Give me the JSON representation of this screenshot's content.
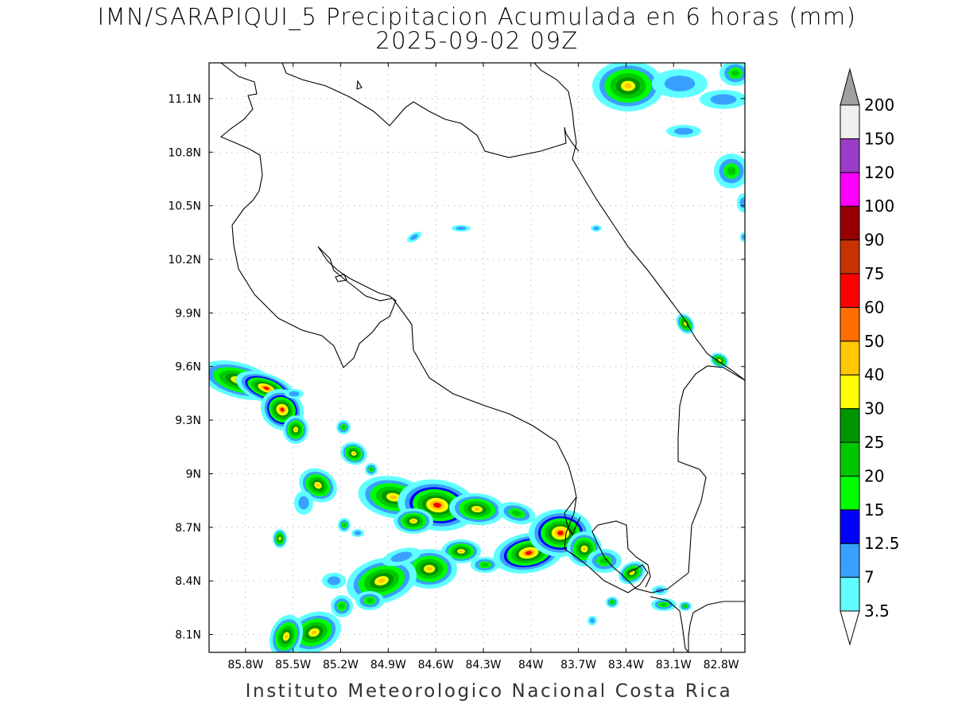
{
  "title": {
    "line1": "IMN/SARAPIQUI_5 Precipitacion Acumulada en 6 horas (mm)",
    "line2": "2025-09-02 09Z"
  },
  "footer": "Instituto Meteorologico Nacional Costa Rica",
  "map": {
    "lon_range": [
      -86.03,
      -82.65
    ],
    "lat_range": [
      8.0,
      11.3
    ],
    "lon_ticks": [
      {
        "value": -85.8,
        "label": "85.8W"
      },
      {
        "value": -85.5,
        "label": "85.5W"
      },
      {
        "value": -85.2,
        "label": "85.2W"
      },
      {
        "value": -84.9,
        "label": "84.9W"
      },
      {
        "value": -84.6,
        "label": "84.6W"
      },
      {
        "value": -84.3,
        "label": "84.3W"
      },
      {
        "value": -84.0,
        "label": "84W"
      },
      {
        "value": -83.7,
        "label": "83.7W"
      },
      {
        "value": -83.4,
        "label": "83.4W"
      },
      {
        "value": -83.1,
        "label": "83.1W"
      },
      {
        "value": -82.8,
        "label": "82.8W"
      }
    ],
    "lat_ticks": [
      {
        "value": 8.1,
        "label": "8.1N"
      },
      {
        "value": 8.4,
        "label": "8.4N"
      },
      {
        "value": 8.7,
        "label": "8.7N"
      },
      {
        "value": 9.0,
        "label": "9N"
      },
      {
        "value": 9.3,
        "label": "9.3N"
      },
      {
        "value": 9.6,
        "label": "9.6N"
      },
      {
        "value": 9.9,
        "label": "9.9N"
      },
      {
        "value": 10.2,
        "label": "10.2N"
      },
      {
        "value": 10.5,
        "label": "10.5N"
      },
      {
        "value": 10.8,
        "label": "10.8N"
      },
      {
        "value": 11.1,
        "label": "11.1N"
      }
    ],
    "grid": true,
    "colors": {
      "c3_5": "#5fffff",
      "c7": "#3aa0ff",
      "c12_5": "#0000ff",
      "c15": "#00ff00",
      "c20": "#00c800",
      "c25": "#009600",
      "c30": "#ffff00",
      "c40": "#ffc800",
      "c50": "#ff6e00",
      "c60": "#ff0000",
      "c75": "#c83200",
      "c90": "#960000",
      "c100": "#ff00ff",
      "c120": "#9b3cc8",
      "c150": "#f0f0f0",
      "c200": "#a0a0a0"
    }
  },
  "colorbar": {
    "labels": [
      "3.5",
      "7",
      "12.5",
      "15",
      "20",
      "25",
      "30",
      "40",
      "50",
      "60",
      "75",
      "90",
      "100",
      "120",
      "150",
      "200"
    ],
    "colors": [
      "#ffffff",
      "#5fffff",
      "#3aa0ff",
      "#0000ff",
      "#00ff00",
      "#00c800",
      "#009600",
      "#ffff00",
      "#ffc800",
      "#ff6e00",
      "#ff0000",
      "#c83200",
      "#960000",
      "#ff00ff",
      "#9b3cc8",
      "#f0f0f0"
    ],
    "over_color": "#a0a0a0",
    "under_color": "#ffffff"
  }
}
